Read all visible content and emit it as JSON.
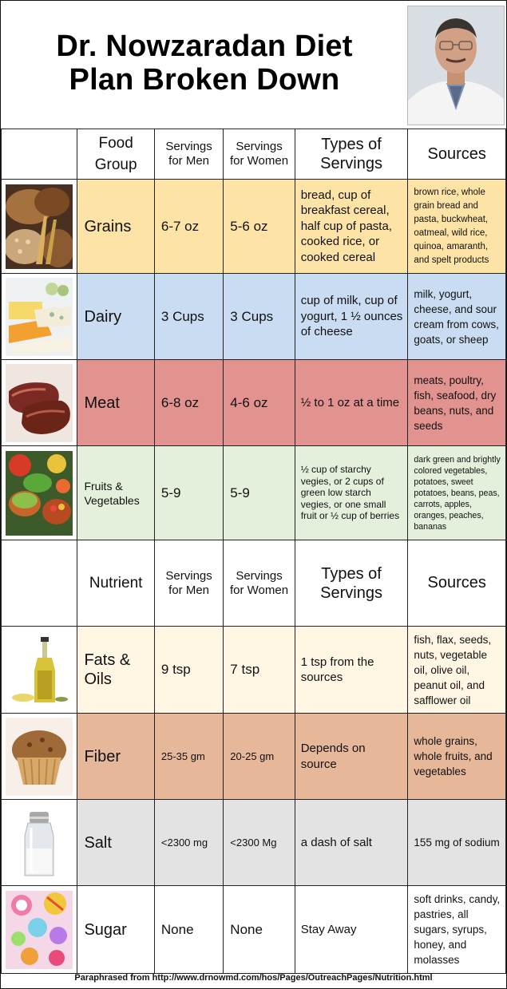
{
  "title": {
    "line1": "Dr. Nowzaradan Diet",
    "line2": "Plan Broken Down"
  },
  "food_header": {
    "food_group": "Food Group",
    "servings_men": "Servings for Men",
    "servings_women": "Servings for Women",
    "types": "Types of Servings",
    "sources": "Sources"
  },
  "food_rows": [
    {
      "name": "Grains",
      "icon": "grains-bread-image",
      "men": "6-7 oz",
      "women": "5-6 oz",
      "types": "bread, cup of breakfast cereal, half cup of pasta, cooked rice, or cooked cereal",
      "sources": "brown rice, whole grain bread and pasta, buckwheat, oatmeal, wild rice, quinoa, amaranth, and spelt products",
      "color": "#fde3a6"
    },
    {
      "name": "Dairy",
      "icon": "cheese-image",
      "men": "3 Cups",
      "women": "3 Cups",
      "types": "cup of milk, cup of yogurt, 1 ½ ounces of cheese",
      "sources": "milk, yogurt, cheese, and sour cream from cows, goats, or sheep",
      "color": "#c9dcf1"
    },
    {
      "name": "Meat",
      "icon": "steak-image",
      "men": "6-8 oz",
      "women": "4-6 oz",
      "types": "½ to 1 oz at a time",
      "sources": "meats, poultry, fish, seafood, dry beans, nuts, and seeds",
      "color": "#e3938f"
    },
    {
      "name": "Fruits & Vegetables",
      "icon": "vegetables-image",
      "men": "5-9",
      "women": "5-9",
      "types": "½ cup of starchy vegies, or 2 cups of green low starch vegies, or one small fruit or ½ cup of berries",
      "sources": "dark green and brightly colored vegetables, potatoes, sweet potatoes, beans, peas, carrots, apples, oranges, peaches, bananas",
      "color": "#e4efdc"
    }
  ],
  "nutrient_header": {
    "nutrient": "Nutrient",
    "servings_men": "Servings for Men",
    "servings_women": "Servings for Women",
    "types": "Types of Servings",
    "sources": "Sources"
  },
  "nutrient_rows": [
    {
      "name": "Fats & Oils",
      "icon": "olive-oil-image",
      "men": "9 tsp",
      "women": "7 tsp",
      "types": "1 tsp from the sources",
      "sources": "fish, flax, seeds, nuts, vegetable oil, olive oil, peanut oil, and safflower oil",
      "color": "#fff6e3"
    },
    {
      "name": "Fiber",
      "icon": "muffin-image",
      "men": "25-35 gm",
      "women": "20-25 gm",
      "types": "Depends on source",
      "sources": "whole grains, whole fruits, and vegetables",
      "color": "#e7b79a"
    },
    {
      "name": "Salt",
      "icon": "salt-shaker-image",
      "men": "<2300 mg",
      "women": "<2300 Mg",
      "types": "a dash of salt",
      "sources": "155 mg of sodium",
      "color": "#e3e3e3"
    },
    {
      "name": "Sugar",
      "icon": "candy-image",
      "men": "None",
      "women": "None",
      "types": "Stay Away",
      "sources": "soft drinks, candy, pastries, all sugars, syrups, honey, and molasses",
      "color": "#ffffff"
    }
  ],
  "footer": "Paraphrased from http://www.drnowmd.com/hos/Pages/OutreachPages/Nutrition.html",
  "colors": {
    "grains": "#fde3a6",
    "dairy": "#c9dcf1",
    "meat": "#e3938f",
    "produce": "#e4efdc",
    "fats": "#fff6e3",
    "fiber": "#e7b79a",
    "salt": "#e3e3e3",
    "sugar": "#ffffff"
  }
}
